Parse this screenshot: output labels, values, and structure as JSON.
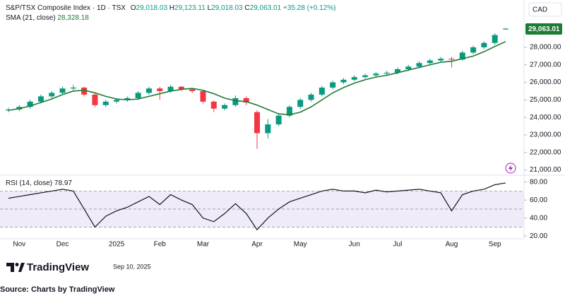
{
  "header": {
    "symbol": "S&P/TSX Composite Index",
    "separator": "·",
    "interval": "1D",
    "exchange": "TSX",
    "ohlc": [
      {
        "label": "O",
        "value": "29,018.03"
      },
      {
        "label": "H",
        "value": "29,123.11"
      },
      {
        "label": "L",
        "value": "29,018.03"
      },
      {
        "label": "C",
        "value": "29,063.01"
      }
    ],
    "change": "+35.28 (+0.12%)",
    "currency": "CAD",
    "last_price": "29,063.01"
  },
  "chart_data": [
    {
      "type": "candlestick",
      "categories": [
        null,
        "Nov",
        null,
        null,
        null,
        "Dec",
        null,
        null,
        null,
        null,
        "2025",
        null,
        null,
        null,
        "Feb",
        null,
        null,
        null,
        "Mar",
        null,
        null,
        null,
        null,
        "Apr",
        null,
        null,
        null,
        "May",
        null,
        null,
        null,
        null,
        "Jun",
        null,
        null,
        null,
        "Jul",
        null,
        null,
        null,
        null,
        "Aug",
        null,
        null,
        null,
        "Sep",
        null
      ],
      "open": [
        24400,
        24450,
        24600,
        24900,
        25200,
        25400,
        25650,
        25700,
        25300,
        24700,
        24900,
        25000,
        25100,
        25400,
        25650,
        25500,
        25750,
        25600,
        25500,
        24900,
        24500,
        24700,
        25100,
        24300,
        23100,
        23600,
        24100,
        24600,
        25000,
        25300,
        25700,
        26000,
        26150,
        26300,
        26400,
        26500,
        26550,
        26750,
        26900,
        27100,
        27250,
        27350,
        27300,
        27700,
        28000,
        28250,
        29018.03
      ],
      "high": [
        24550,
        24700,
        25000,
        25300,
        25500,
        25750,
        25850,
        25750,
        25350,
        25000,
        25100,
        25200,
        25500,
        25750,
        25750,
        25850,
        25800,
        25650,
        25550,
        24950,
        24800,
        25250,
        25200,
        24400,
        23900,
        24200,
        24700,
        25100,
        25400,
        25800,
        26100,
        26250,
        26400,
        26500,
        26600,
        26650,
        26850,
        27000,
        27200,
        27350,
        27450,
        27450,
        27800,
        28100,
        28350,
        28800,
        29123.11
      ],
      "low": [
        24300,
        24350,
        24500,
        24800,
        25100,
        25300,
        25550,
        25200,
        24600,
        24600,
        24800,
        24900,
        25000,
        25300,
        25000,
        25400,
        25500,
        25400,
        24800,
        24300,
        24400,
        24600,
        24700,
        22200,
        22800,
        23500,
        24000,
        24500,
        24900,
        25200,
        25600,
        25900,
        26050,
        26200,
        26300,
        26400,
        26450,
        26650,
        26800,
        27000,
        27150,
        26850,
        27250,
        27600,
        27900,
        28150,
        29018.03
      ],
      "close": [
        24450,
        24600,
        24900,
        25200,
        25400,
        25650,
        25700,
        25300,
        24700,
        24900,
        25000,
        25100,
        25400,
        25650,
        25500,
        25750,
        25600,
        25500,
        24900,
        24500,
        24700,
        25100,
        24850,
        23100,
        23600,
        24100,
        24600,
        25000,
        25300,
        25700,
        26000,
        26150,
        26300,
        26400,
        26500,
        26550,
        26750,
        26900,
        27100,
        27250,
        27350,
        27300,
        27700,
        28000,
        28250,
        28700,
        29063.01
      ],
      "up_color": "#089981",
      "down_color": "#f23645",
      "series": [
        {
          "name": "SMA (21, close)",
          "color": "#1e7b34",
          "value_label": "28,328.18",
          "values": [
            24400,
            24500,
            24650,
            24850,
            25050,
            25300,
            25500,
            25550,
            25400,
            25200,
            25050,
            25000,
            25050,
            25200,
            25350,
            25500,
            25600,
            25650,
            25550,
            25350,
            25100,
            24950,
            24900,
            24700,
            24450,
            24200,
            24150,
            24300,
            24600,
            25000,
            25400,
            25700,
            25950,
            26150,
            26300,
            26400,
            26550,
            26700,
            26850,
            27000,
            27150,
            27200,
            27350,
            27500,
            27750,
            28050,
            28328.18
          ]
        }
      ],
      "ylim": [
        20700,
        30700
      ],
      "yticks": [
        {
          "value": 21000,
          "label": "21,000.00"
        },
        {
          "value": 22000,
          "label": "22,000.00"
        },
        {
          "value": 23000,
          "label": "23,000.00"
        },
        {
          "value": 24000,
          "label": "24,000.00"
        },
        {
          "value": 25000,
          "label": "25,000.00"
        },
        {
          "value": 26000,
          "label": "26,000.00"
        },
        {
          "value": 27000,
          "label": "27,000.00"
        },
        {
          "value": 28000,
          "label": "28,000.00"
        }
      ]
    },
    {
      "type": "line",
      "series": [
        {
          "name": "RSI (14, close)",
          "color": "#131722",
          "value_label": "78.97",
          "values": [
            62,
            64,
            66,
            68,
            70,
            72,
            70,
            50,
            30,
            42,
            48,
            52,
            58,
            64,
            55,
            66,
            60,
            55,
            40,
            36,
            45,
            56,
            45,
            27,
            40,
            50,
            58,
            62,
            66,
            70,
            72,
            70,
            70,
            68,
            71,
            69,
            70,
            71,
            72,
            70,
            68,
            48,
            66,
            70,
            72,
            77,
            78.97
          ]
        }
      ],
      "levels": [
        70,
        50,
        30
      ],
      "band_color": "#efebf8",
      "ylim": [
        17,
        86
      ],
      "yticks": [
        {
          "value": 20,
          "label": "20.00"
        },
        {
          "value": 40,
          "label": "40.00"
        },
        {
          "value": 60,
          "label": "60.00"
        },
        {
          "value": 80,
          "label": "80.00"
        }
      ]
    }
  ],
  "footer": {
    "brand": "TradingView",
    "date": "Sep 10, 2025",
    "source": "Source: Charts by TradingView"
  }
}
